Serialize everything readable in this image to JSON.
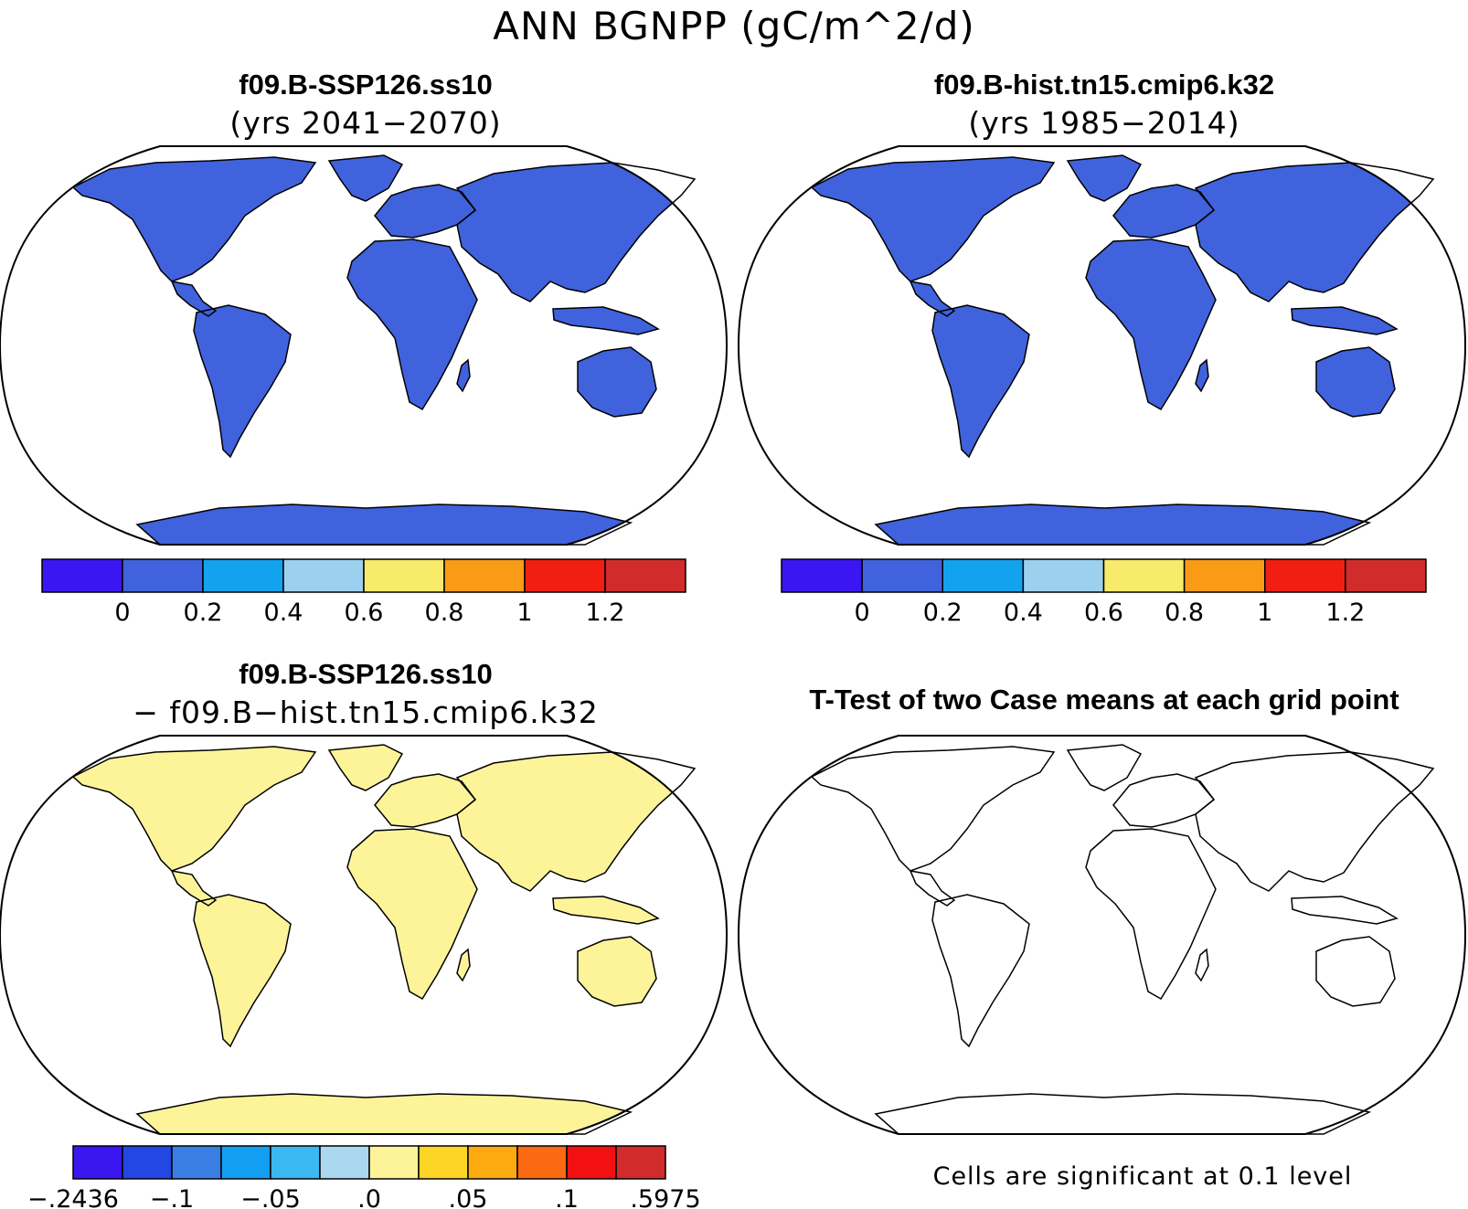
{
  "title": "ANN BGNPP (gC/m^2/d)",
  "panels": {
    "top_left": {
      "title": "f09.B-SSP126.ss10",
      "subtitle": "(yrs 2041−2070)"
    },
    "top_right": {
      "title": "f09.B-hist.tn15.cmip6.k32",
      "subtitle": "(yrs 1985−2014)"
    },
    "bottom_left": {
      "title": "f09.B-SSP126.ss10",
      "subtitle": "− f09.B−hist.tn15.cmip6.k32"
    },
    "bottom_right": {
      "title": "T-Test of two Case means at each grid point",
      "note": "Cells are significant at 0.1 level"
    }
  },
  "colorbar_main": {
    "colors": [
      "#3a17f0",
      "#4062dc",
      "#13a3ee",
      "#9cd0ee",
      "#f8ea6a",
      "#f99b17",
      "#f01f12",
      "#d22b2b"
    ],
    "ticks": [
      "0",
      "0.2",
      "0.4",
      "0.6",
      "0.8",
      "1",
      "1.2"
    ]
  },
  "colorbar_diff": {
    "colors": [
      "#3a17f0",
      "#2347e2",
      "#3a7ee4",
      "#129ff2",
      "#3ab8f2",
      "#a9d8ef",
      "#fdf49a",
      "#fcd426",
      "#fbaa10",
      "#fb6a10",
      "#f21010",
      "#d22b2b"
    ],
    "ticks": [
      "−.2436",
      "−.1",
      "−.05",
      ".0",
      ".05",
      ".1",
      ".5975"
    ]
  },
  "map_colors": {
    "ocean": "#ffffff",
    "ttest_significant": "#f50d0d"
  }
}
